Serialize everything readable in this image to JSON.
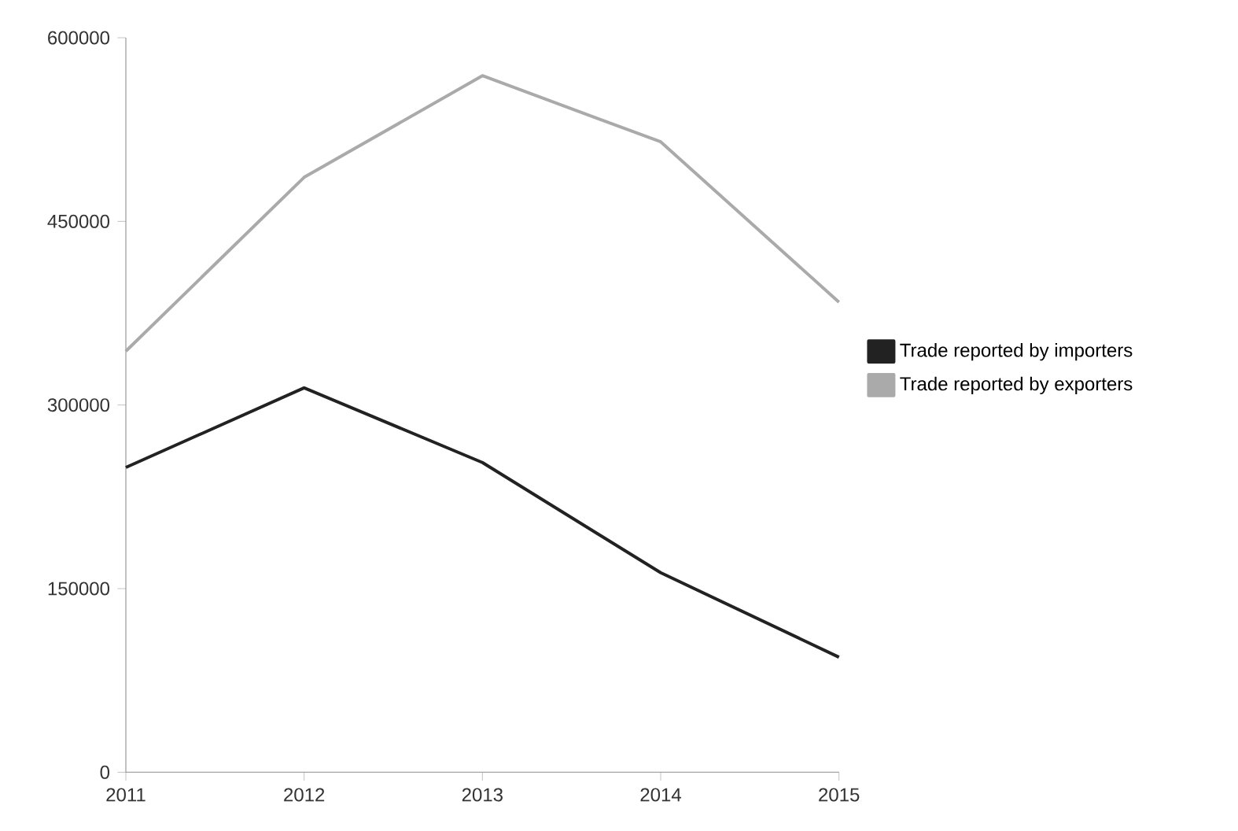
{
  "chart_data": {
    "type": "line",
    "x": [
      2011,
      2012,
      2013,
      2014,
      2015
    ],
    "series": [
      {
        "name": "Trade reported by importers",
        "color": "#222222",
        "values": [
          249000,
          314000,
          253000,
          163000,
          94000
        ]
      },
      {
        "name": "Trade reported by exporters",
        "color": "#aaaaaa",
        "values": [
          344000,
          486000,
          569000,
          515000,
          384000
        ]
      }
    ],
    "xlim": [
      2011,
      2015
    ],
    "xticks": [
      2011,
      2012,
      2013,
      2014,
      2015
    ],
    "ylim": [
      0,
      600000
    ],
    "yticks": [
      0,
      150000,
      300000,
      450000,
      600000
    ],
    "grid": false,
    "legend": "right",
    "marker": "none",
    "line_style": "solid"
  }
}
